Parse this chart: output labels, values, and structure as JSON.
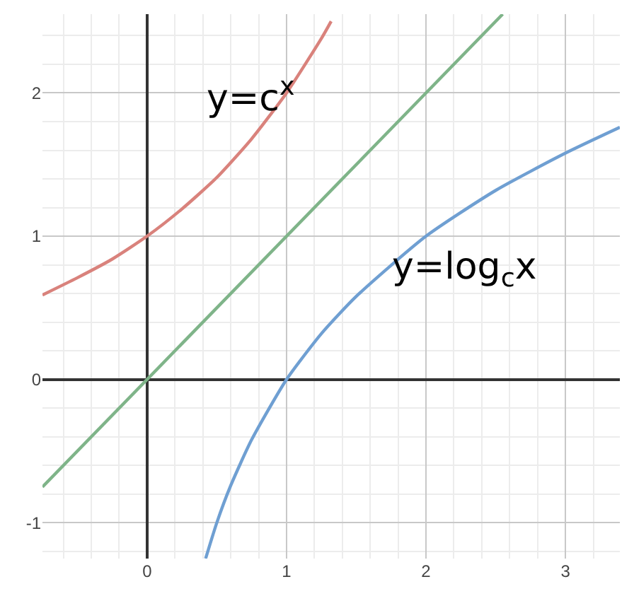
{
  "chart_data": {
    "type": "line",
    "series": [
      {
        "color": "#d9827c",
        "x": [
          -0.75,
          -0.5,
          -0.25,
          0,
          0.25,
          0.5,
          0.75,
          1,
          1.25,
          1.32
        ],
        "values": [
          0.59,
          0.71,
          0.84,
          1,
          1.19,
          1.41,
          1.68,
          2,
          2.38,
          2.5
        ]
      },
      {
        "color": "#7fb489",
        "x": [
          -0.75,
          2.55
        ],
        "values": [
          -0.75,
          2.55
        ]
      },
      {
        "color": "#6f9fd2",
        "x": [
          0.42,
          0.5,
          0.6,
          0.75,
          1,
          1.25,
          1.5,
          2,
          2.5,
          3,
          3.39
        ],
        "values": [
          -1.25,
          -1,
          -0.74,
          -0.42,
          0,
          0.32,
          0.58,
          1,
          1.32,
          1.58,
          1.76
        ]
      }
    ],
    "xlim": [
      -0.75,
      3.39
    ],
    "ylim": [
      -1.25,
      2.55
    ],
    "xticks": [
      0,
      1,
      2,
      3
    ],
    "yticks": [
      -1,
      0,
      1,
      2
    ],
    "grid": true,
    "marker": "none",
    "line_style": "solid",
    "annotations": [
      "y=c$^{x}$",
      "y=log$_{c}$x"
    ]
  }
}
